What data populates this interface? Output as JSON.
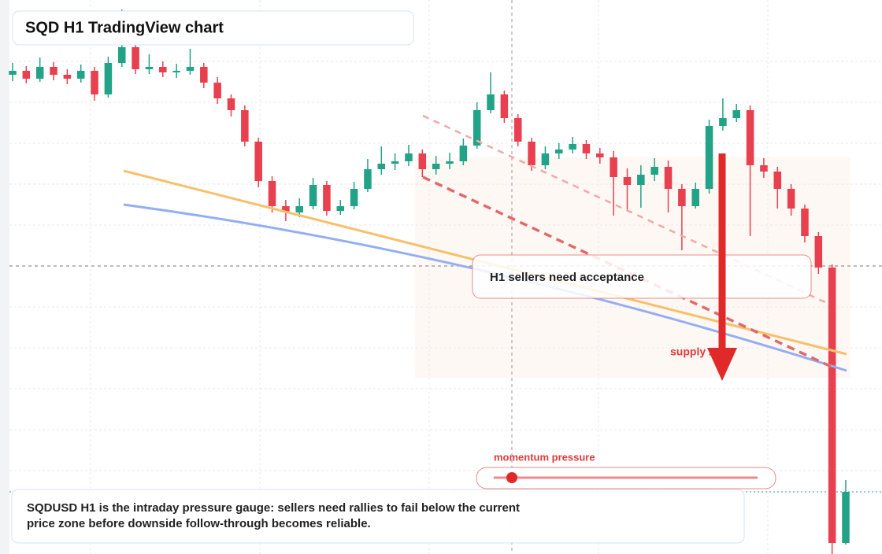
{
  "chart_data": {
    "type": "candlestick",
    "title": "SQD H1 TradingView chart",
    "annotations": [
      "H1 sellers need acceptance",
      "supply zone",
      "momentum pressure"
    ],
    "caption": "SQDUSD H1 is the intraday pressure gauge: sellers need rallies to fail below the current price zone before downside follow-through becomes reliable.",
    "categories": [
      null,
      null,
      null,
      null,
      null,
      null,
      null,
      null,
      null,
      null,
      null,
      null,
      null,
      null,
      null,
      null,
      null,
      null,
      null,
      null,
      null,
      null,
      null,
      null,
      null,
      null,
      null,
      null,
      null,
      null,
      null,
      null,
      null,
      null,
      null,
      null,
      null,
      null,
      null,
      null,
      null,
      null,
      null,
      null,
      null,
      null,
      null,
      null,
      null,
      null,
      null,
      null,
      null,
      null,
      null,
      null,
      null,
      null,
      null,
      null,
      null,
      null
    ],
    "open": [
      60.9,
      61.4,
      60.4,
      61.9,
      60.9,
      60.4,
      61.4,
      58.4,
      62.4,
      64.4,
      61.6,
      61.9,
      61.2,
      61.4,
      61.9,
      59.9,
      57.9,
      56.4,
      52.4,
      47.4,
      44.2,
      43.4,
      44.2,
      46.9,
      43.6,
      44.2,
      46.4,
      48.9,
      49.6,
      49.9,
      50.9,
      48.9,
      49.6,
      49.9,
      51.9,
      56.4,
      58.4,
      55.4,
      52.4,
      49.4,
      50.9,
      51.4,
      52.1,
      50.9,
      50.4,
      47.9,
      46.9,
      48.2,
      49.2,
      46.4,
      44.2,
      46.4,
      54.4,
      55.4,
      56.4,
      49.4,
      48.6,
      46.4,
      43.9,
      40.4,
      36.4,
      1.4
    ],
    "high": [
      62.4,
      62.0,
      63.1,
      62.5,
      61.6,
      62.2,
      61.9,
      63.2,
      69.2,
      65.0,
      63.5,
      62.6,
      62.3,
      64.2,
      62.4,
      60.6,
      58.4,
      57.0,
      52.9,
      48.0,
      45.0,
      45.2,
      47.8,
      47.4,
      45.0,
      47.3,
      50.2,
      51.8,
      50.9,
      52.0,
      51.4,
      50.6,
      51.0,
      52.8,
      57.4,
      61.2,
      58.9,
      55.9,
      52.9,
      51.8,
      52.2,
      53.0,
      52.6,
      51.6,
      51.2,
      49.0,
      49.4,
      50.3,
      50.0,
      47.0,
      47.2,
      55.2,
      57.9,
      57.2,
      57.0,
      50.3,
      49.2,
      47.0,
      44.4,
      40.9,
      36.8,
      9.4
    ],
    "low": [
      60.1,
      59.8,
      60.0,
      60.2,
      59.7,
      59.9,
      57.6,
      58.0,
      61.9,
      61.0,
      61.0,
      60.6,
      60.5,
      60.9,
      59.2,
      57.2,
      55.6,
      51.8,
      46.6,
      43.4,
      42.3,
      42.8,
      43.8,
      43.0,
      43.1,
      43.8,
      46.0,
      48.2,
      48.8,
      49.3,
      47.9,
      48.2,
      48.9,
      49.4,
      51.5,
      56.0,
      54.8,
      51.8,
      48.7,
      48.9,
      50.2,
      50.9,
      50.2,
      49.6,
      43.0,
      43.8,
      44.0,
      47.4,
      43.4,
      38.6,
      43.9,
      45.8,
      53.8,
      54.9,
      40.4,
      47.8,
      43.9,
      43.0,
      39.6,
      35.6,
      0.0,
      1.2
    ],
    "close": [
      61.4,
      60.4,
      61.9,
      60.9,
      60.4,
      61.4,
      58.4,
      62.4,
      64.4,
      61.6,
      61.9,
      61.2,
      61.4,
      61.9,
      59.9,
      57.9,
      56.4,
      52.4,
      47.4,
      44.2,
      43.4,
      44.2,
      46.9,
      43.6,
      44.2,
      46.4,
      48.9,
      49.6,
      49.9,
      50.9,
      48.9,
      49.6,
      49.9,
      51.9,
      56.4,
      58.4,
      55.4,
      52.4,
      49.4,
      50.9,
      51.4,
      52.1,
      50.9,
      50.4,
      47.9,
      46.9,
      48.2,
      49.2,
      46.4,
      44.2,
      46.4,
      54.4,
      55.4,
      56.4,
      49.4,
      48.6,
      46.4,
      43.9,
      40.4,
      36.4,
      1.4,
      7.9
    ],
    "up_color": "#22a387",
    "down_color": "#e8404f",
    "ylim": [
      0,
      70.4
    ]
  }
}
